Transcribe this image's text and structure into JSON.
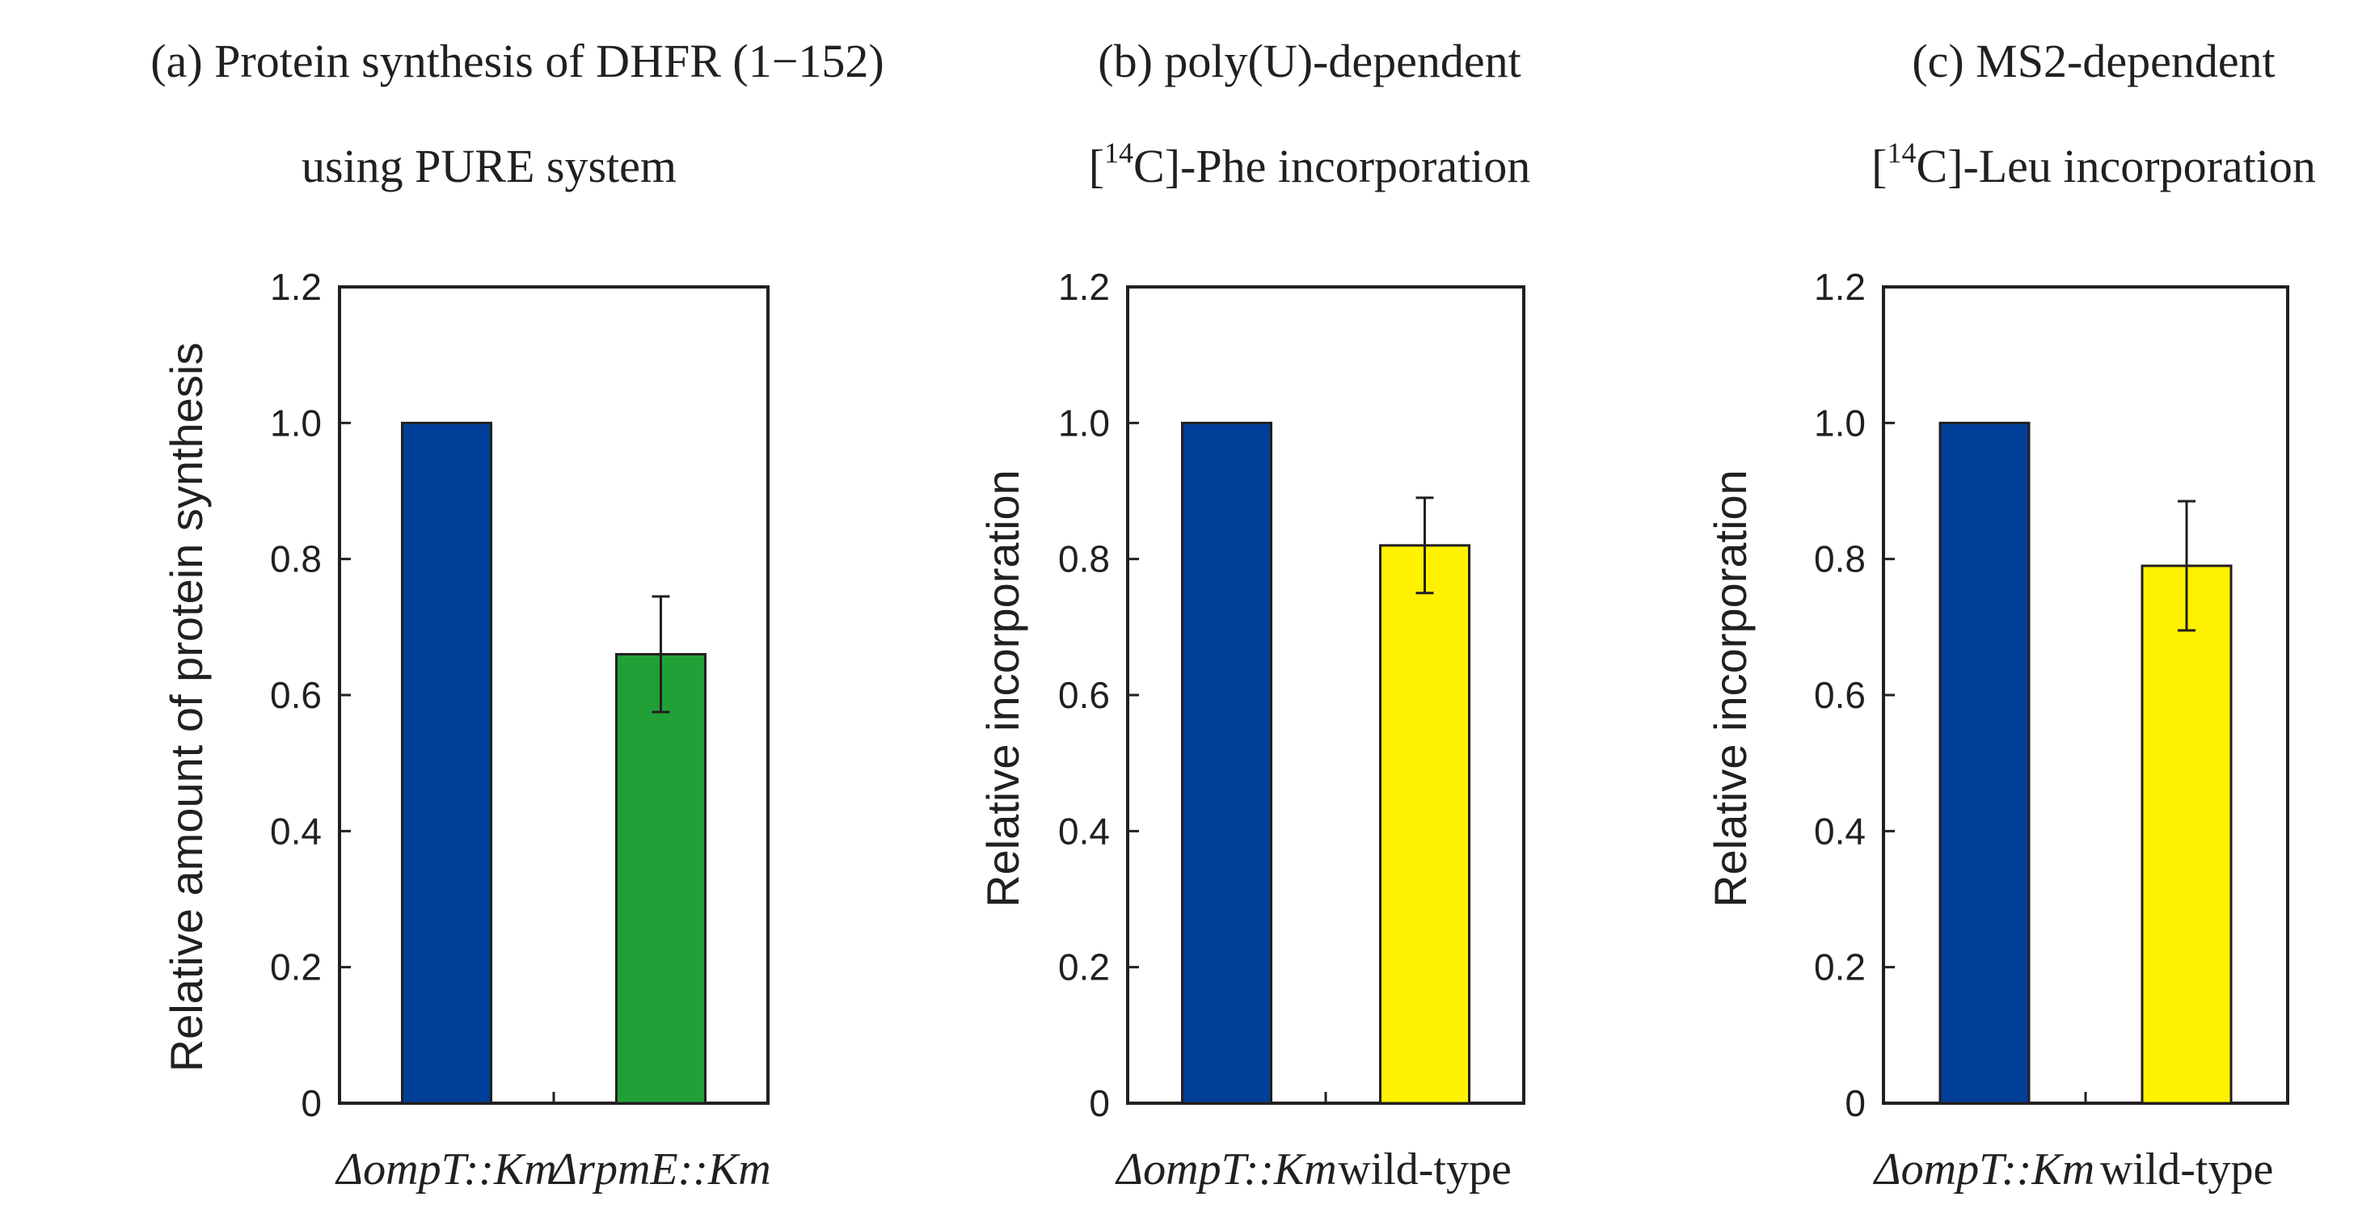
{
  "chart_data": [
    {
      "type": "bar",
      "title_lines": [
        "(a) Protein synthesis of DHFR (1−152)",
        "using PURE system"
      ],
      "ylabel": "Relative amount of protein synthesis",
      "xlabel": "",
      "ylim": [
        0,
        1.2
      ],
      "yticks": [
        "0",
        "0.2",
        "0.4",
        "0.6",
        "0.8",
        "1.0",
        "1.2"
      ],
      "categories": [
        {
          "prefix": "Δ",
          "name": "ompT::Km",
          "italic": true
        },
        {
          "prefix": "Δ",
          "name": "rpmE::Km",
          "italic": true
        }
      ],
      "values": [
        1.0,
        0.66
      ],
      "errors": [
        0.0,
        0.085
      ],
      "colors": [
        "#003f98",
        "#21a038"
      ]
    },
    {
      "type": "bar",
      "title_lines": [
        "(b) poly(U)-dependent",
        "[14C]-Phe incorporation"
      ],
      "title_superscript": {
        "line": 1,
        "before": "[",
        "sup": "14",
        "after": "C]-Phe incorporation"
      },
      "ylabel": "Relative incorporation",
      "xlabel": "",
      "ylim": [
        0,
        1.2
      ],
      "yticks": [
        "0",
        "0.2",
        "0.4",
        "0.6",
        "0.8",
        "1.0",
        "1.2"
      ],
      "categories": [
        {
          "prefix": "Δ",
          "name": "ompT::Km",
          "italic": true
        },
        {
          "prefix": "",
          "name": "wild-type",
          "italic": false
        }
      ],
      "values": [
        1.0,
        0.82
      ],
      "errors": [
        0.0,
        0.07
      ],
      "colors": [
        "#003f98",
        "#fff200"
      ]
    },
    {
      "type": "bar",
      "title_lines": [
        "(c) MS2-dependent",
        "[14C]-Leu incorporation"
      ],
      "title_superscript": {
        "line": 1,
        "before": "[",
        "sup": "14",
        "after": "C]-Leu incorporation"
      },
      "ylabel": "Relative incorporation",
      "xlabel": "",
      "ylim": [
        0,
        1.2
      ],
      "yticks": [
        "0",
        "0.2",
        "0.4",
        "0.6",
        "0.8",
        "1.0",
        "1.2"
      ],
      "categories": [
        {
          "prefix": "Δ",
          "name": "ompT::Km",
          "italic": true
        },
        {
          "prefix": "",
          "name": "wild-type",
          "italic": false
        }
      ],
      "values": [
        1.0,
        0.79
      ],
      "errors": [
        0.0,
        0.095
      ],
      "colors": [
        "#003f98",
        "#fff200"
      ]
    }
  ]
}
